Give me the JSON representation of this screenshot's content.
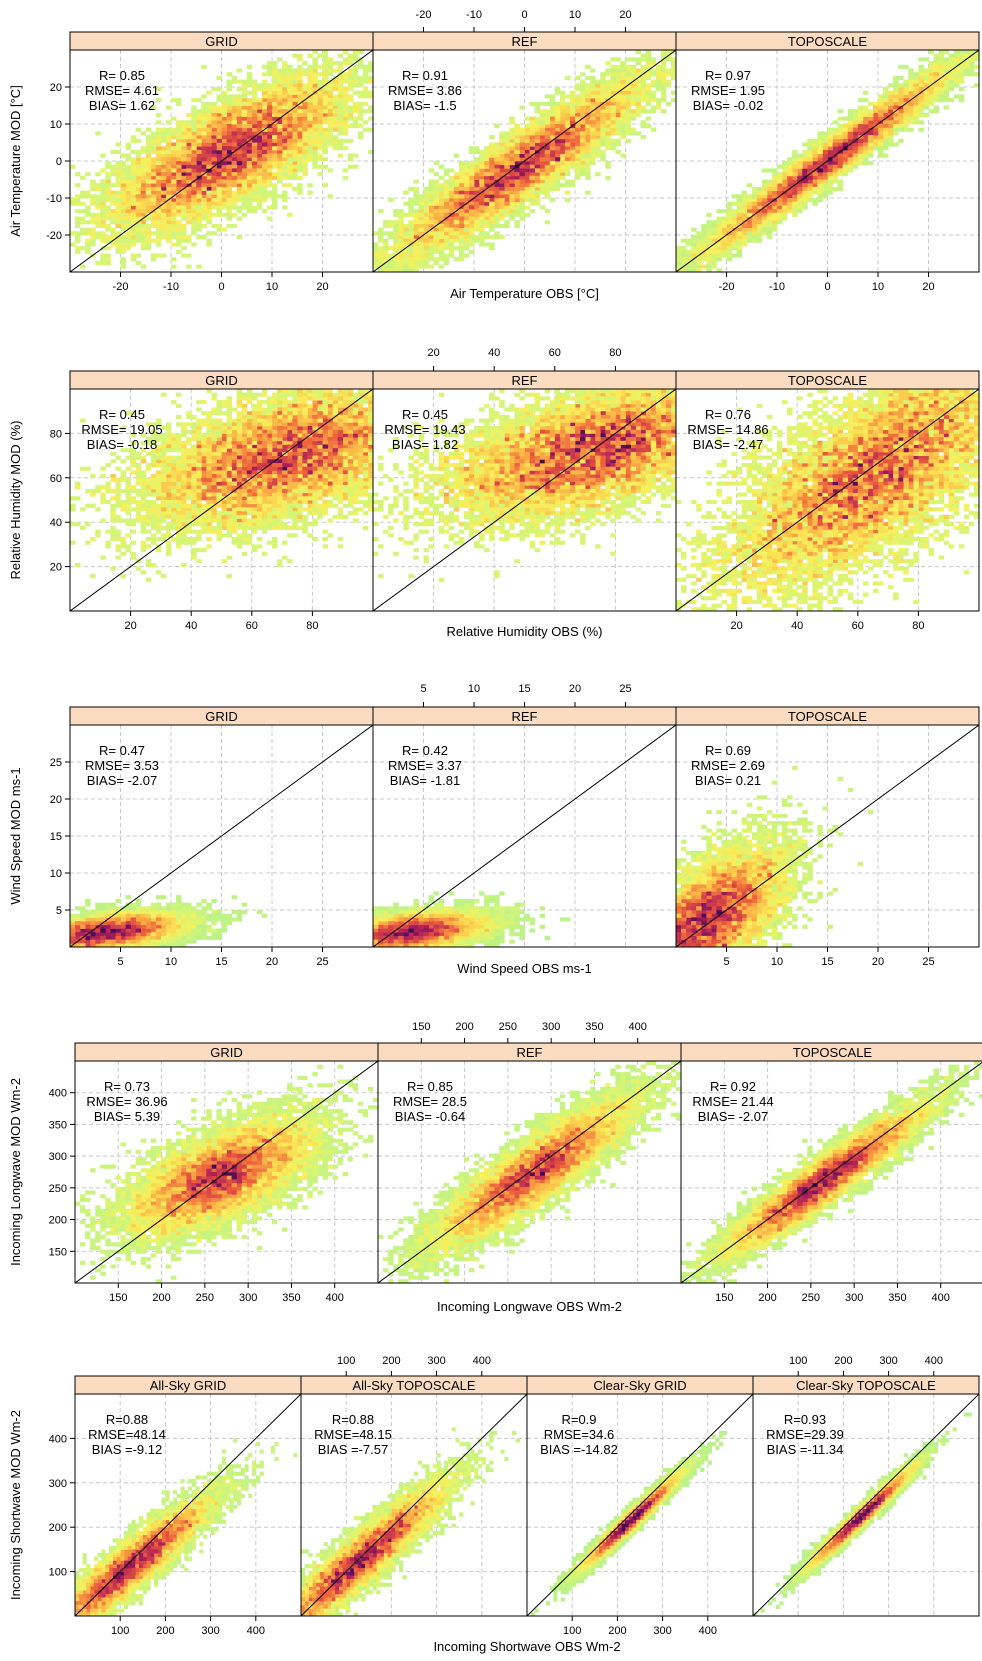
{
  "chart_data": [
    {
      "type": "scatter",
      "variable": "Air Temperature",
      "xlabel": "Air Temperature OBS [°C]",
      "ylabel": "Air Temperature MOD [°C]",
      "xlim": [
        -30,
        30
      ],
      "ylim": [
        -30,
        30
      ],
      "x_ticks": [
        -20,
        -10,
        0,
        10,
        20
      ],
      "y_ticks": [
        -20,
        -10,
        0,
        10,
        20
      ],
      "grid": true,
      "one_to_one_line": true,
      "panels": [
        {
          "title": "GRID",
          "stats": [
            "R= 0.85",
            "RMSE= 4.61",
            "BIAS= 1.62"
          ],
          "center": [
            1.5,
            2
          ],
          "spread": [
            12,
            7
          ],
          "slope": 0.65
        },
        {
          "title": "REF",
          "stats": [
            "R= 0.91",
            "RMSE= 3.86",
            "BIAS= -1.5"
          ],
          "center": [
            -1,
            -2
          ],
          "spread": [
            13,
            5
          ],
          "slope": 0.9
        },
        {
          "title": "TOPOSCALE",
          "stats": [
            "R= 0.97",
            "RMSE= 1.95",
            "BIAS= -0.02"
          ],
          "center": [
            0,
            0
          ],
          "spread": [
            13,
            3
          ],
          "slope": 1.0
        }
      ]
    },
    {
      "type": "scatter",
      "variable": "Relative Humidity",
      "xlabel": "Relative Humidity OBS (%)",
      "ylabel": "Relative Humidity MOD (%)",
      "xlim": [
        0,
        100
      ],
      "ylim": [
        0,
        100
      ],
      "x_ticks": [
        20,
        40,
        60,
        80
      ],
      "y_ticks": [
        20,
        40,
        60,
        80
      ],
      "grid": true,
      "one_to_one_line": true,
      "panels": [
        {
          "title": "GRID",
          "stats": [
            "R= 0.45",
            "RMSE= 19.05",
            "BIAS= -0.18"
          ],
          "center": [
            72,
            70
          ],
          "spread": [
            25,
            14
          ],
          "slope": 0.35
        },
        {
          "title": "REF",
          "stats": [
            "R= 0.45",
            "RMSE= 19.43",
            "BIAS= 1.82"
          ],
          "center": [
            72,
            72
          ],
          "spread": [
            25,
            13
          ],
          "slope": 0.35
        },
        {
          "title": "TOPOSCALE",
          "stats": [
            "R= 0.76",
            "RMSE= 14.86",
            "BIAS= -2.47"
          ],
          "center": [
            65,
            62
          ],
          "spread": [
            25,
            20
          ],
          "slope": 0.75
        }
      ]
    },
    {
      "type": "scatter",
      "variable": "Wind Speed",
      "xlabel": "Wind Speed OBS ms-1",
      "ylabel": "Wind Speed MOD ms-1",
      "xlim": [
        0,
        30
      ],
      "ylim": [
        0,
        30
      ],
      "x_ticks": [
        5,
        10,
        15,
        20,
        25
      ],
      "y_ticks": [
        5,
        10,
        15,
        20,
        25
      ],
      "grid": true,
      "one_to_one_line": true,
      "panels": [
        {
          "title": "GRID",
          "stats": [
            "R= 0.47",
            "RMSE= 3.53",
            "BIAS= -2.07"
          ],
          "center": [
            3.5,
            2
          ],
          "spread": [
            4,
            1.2
          ],
          "slope": 0.15
        },
        {
          "title": "REF",
          "stats": [
            "R= 0.42",
            "RMSE= 3.37",
            "BIAS= -1.81"
          ],
          "center": [
            3.5,
            2
          ],
          "spread": [
            4,
            1.3
          ],
          "slope": 0.15
        },
        {
          "title": "TOPOSCALE",
          "stats": [
            "R= 0.69",
            "RMSE= 2.69",
            "BIAS= 0.21"
          ],
          "center": [
            3,
            3.5
          ],
          "spread": [
            4,
            4
          ],
          "slope": 0.8
        }
      ]
    },
    {
      "type": "scatter",
      "variable": "Incoming Longwave",
      "xlabel": "Incoming Longwave OBS Wm-2",
      "ylabel": "Incoming Longwave MOD Wm-2",
      "xlim": [
        100,
        450
      ],
      "ylim": [
        100,
        450
      ],
      "x_ticks": [
        150,
        200,
        250,
        300,
        350,
        400
      ],
      "y_ticks": [
        150,
        200,
        250,
        300,
        350,
        400
      ],
      "grid": true,
      "one_to_one_line": true,
      "panels": [
        {
          "title": "GRID",
          "stats": [
            "R= 0.73",
            "RMSE= 36.96",
            "BIAS= 5.39"
          ],
          "center": [
            270,
            270
          ],
          "spread": [
            55,
            35
          ],
          "slope": 0.55
        },
        {
          "title": "REF",
          "stats": [
            "R= 0.85",
            "RMSE= 28.5",
            "BIAS= -0.64"
          ],
          "center": [
            280,
            275
          ],
          "spread": [
            60,
            28
          ],
          "slope": 0.9
        },
        {
          "title": "TOPOSCALE",
          "stats": [
            "R= 0.92",
            "RMSE= 21.44",
            "BIAS= -2.07"
          ],
          "center": [
            265,
            262
          ],
          "spread": [
            60,
            20
          ],
          "slope": 0.95
        }
      ]
    },
    {
      "type": "scatter",
      "variable": "Incoming Shortwave",
      "xlabel": "Incoming Shortwave OBS Wm-2",
      "ylabel": "Incoming Shortwave MOD Wm-2",
      "xlim": [
        0,
        500
      ],
      "ylim": [
        0,
        500
      ],
      "x_ticks": [
        100,
        200,
        300,
        400
      ],
      "y_ticks": [
        100,
        200,
        300,
        400
      ],
      "grid": true,
      "one_to_one_line": true,
      "panels": [
        {
          "title": "All-Sky GRID",
          "stats": [
            "R=0.88",
            "RMSE=48.14",
            "BIAS =-9.12"
          ],
          "center": [
            120,
            110
          ],
          "spread": [
            95,
            30
          ],
          "slope": 0.8
        },
        {
          "title": "All-Sky TOPOSCALE",
          "stats": [
            "R=0.88",
            "RMSE=48.15",
            "BIAS =-7.57"
          ],
          "center": [
            130,
            125
          ],
          "spread": [
            100,
            32
          ],
          "slope": 0.85
        },
        {
          "title": "Clear-Sky GRID",
          "stats": [
            "R=0.9",
            "RMSE=34.6",
            "BIAS =-14.82"
          ],
          "center": [
            230,
            215
          ],
          "spread": [
            55,
            12
          ],
          "slope": 0.95
        },
        {
          "title": "Clear-Sky TOPOSCALE",
          "stats": [
            "R=0.93",
            "RMSE=29.39",
            "BIAS =-11.34"
          ],
          "center": [
            240,
            225
          ],
          "spread": [
            60,
            12
          ],
          "slope": 0.95
        }
      ]
    }
  ]
}
